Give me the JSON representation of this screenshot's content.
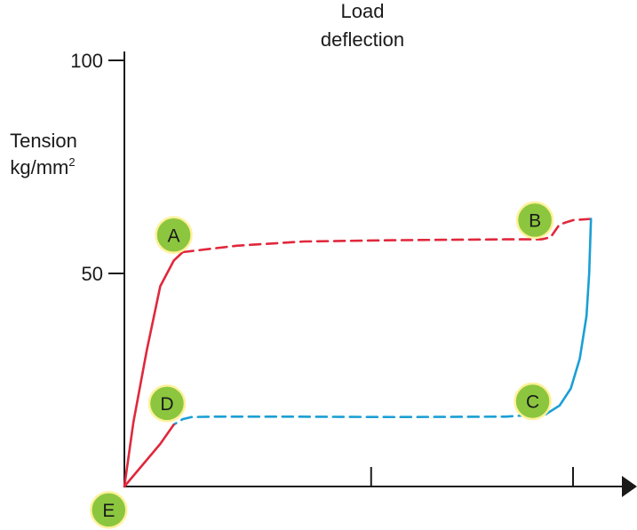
{
  "chart_data": {
    "type": "line",
    "title": "",
    "xlabel": "Load deflection",
    "ylabel_line1": "Tension",
    "ylabel_line2": "kg/mm",
    "ylabel_superscript": "2",
    "ylim": [
      0,
      100
    ],
    "xlim": [
      0,
      100
    ],
    "yticks": [
      {
        "value": 100,
        "label": "100"
      },
      {
        "value": 50,
        "label": "50"
      }
    ],
    "xticks": [
      55,
      100
    ],
    "colors": {
      "loading": "#e0283c",
      "unloading": "#1a9fd4",
      "axis": "#1a1a1a",
      "point_fill": "#8cc63f",
      "point_ring": "#fff19a"
    },
    "series": [
      {
        "name": "loading-solid",
        "color": "loading",
        "dash": false,
        "points": [
          [
            0,
            0
          ],
          [
            2,
            15
          ],
          [
            5,
            32
          ],
          [
            8,
            47
          ],
          [
            11,
            53
          ],
          [
            13,
            55
          ]
        ]
      },
      {
        "name": "loading-plateau",
        "color": "loading",
        "dash": true,
        "points": [
          [
            13,
            55
          ],
          [
            25,
            56.5
          ],
          [
            40,
            57.5
          ],
          [
            60,
            57.8
          ],
          [
            85,
            58
          ],
          [
            93,
            58
          ],
          [
            95,
            58.5
          ],
          [
            97,
            61.5
          ],
          [
            100,
            62.5
          ],
          [
            104,
            62.8
          ]
        ]
      },
      {
        "name": "unloading-solid",
        "color": "unloading",
        "dash": false,
        "points": [
          [
            104,
            62.8
          ],
          [
            103.6,
            50
          ],
          [
            103,
            40
          ],
          [
            101.5,
            30
          ],
          [
            99.5,
            23
          ],
          [
            97,
            19
          ],
          [
            94,
            17
          ]
        ]
      },
      {
        "name": "unloading-plateau",
        "color": "unloading",
        "dash": true,
        "points": [
          [
            94,
            17
          ],
          [
            85,
            16.4
          ],
          [
            60,
            16.3
          ],
          [
            35,
            16.4
          ],
          [
            20,
            16.4
          ],
          [
            15,
            16.3
          ],
          [
            13,
            15.8
          ],
          [
            11,
            14.5
          ]
        ]
      },
      {
        "name": "unloading-return",
        "color": "loading",
        "dash": false,
        "points": [
          [
            11,
            14.5
          ],
          [
            8,
            10
          ],
          [
            4,
            5
          ],
          [
            0,
            0
          ]
        ]
      }
    ],
    "points": [
      {
        "label": "A",
        "x": 11,
        "y": 59
      },
      {
        "label": "B",
        "x": 91.5,
        "y": 62.5
      },
      {
        "label": "C",
        "x": 91,
        "y": 20
      },
      {
        "label": "D",
        "x": 9.5,
        "y": 19.5
      },
      {
        "label": "E",
        "x": -3.5,
        "y": -5.5
      }
    ]
  }
}
